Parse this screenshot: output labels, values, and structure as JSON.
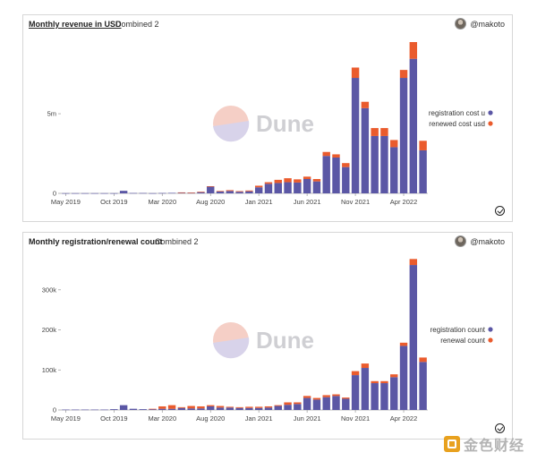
{
  "watermark": {
    "text": "金色财经"
  },
  "chart_data": [
    {
      "type": "bar",
      "stacked": true,
      "title": "Monthly revenue in USD",
      "subtitle": "Combined 2",
      "author": "@makoto",
      "brand": "Dune",
      "yticks": [
        {
          "value": 0,
          "label": "0"
        },
        {
          "value": 5000000,
          "label": "5m"
        }
      ],
      "ylim": [
        0,
        9500000
      ],
      "grid": false,
      "legend": "right",
      "xtick_labels": [
        {
          "index": 0,
          "label": "May 2019"
        },
        {
          "index": 5,
          "label": "Oct 2019"
        },
        {
          "index": 10,
          "label": "Mar 2020"
        },
        {
          "index": 15,
          "label": "Aug 2020"
        },
        {
          "index": 20,
          "label": "Jan 2021"
        },
        {
          "index": 25,
          "label": "Jun 2021"
        },
        {
          "index": 30,
          "label": "Nov 2021"
        },
        {
          "index": 35,
          "label": "Apr 2022"
        }
      ],
      "series": [
        {
          "name": "registration cost u",
          "color": "#5b57a5",
          "values": [
            10000,
            10000,
            10000,
            10000,
            10000,
            10000,
            160000,
            20000,
            20000,
            10000,
            20000,
            30000,
            40000,
            30000,
            80000,
            420000,
            120000,
            150000,
            100000,
            130000,
            380000,
            600000,
            650000,
            700000,
            680000,
            900000,
            750000,
            2350000,
            2250000,
            1650000,
            7250000,
            5350000,
            3600000,
            3600000,
            2900000,
            7250000,
            8450000,
            2700000
          ]
        },
        {
          "name": "renewed cost usd",
          "color": "#ea5b2d",
          "values": [
            0,
            0,
            0,
            0,
            0,
            0,
            0,
            0,
            0,
            0,
            0,
            0,
            20000,
            20000,
            20000,
            30000,
            30000,
            50000,
            40000,
            50000,
            100000,
            100000,
            200000,
            250000,
            200000,
            150000,
            150000,
            250000,
            200000,
            250000,
            650000,
            400000,
            500000,
            500000,
            450000,
            500000,
            1050000,
            600000
          ]
        }
      ]
    },
    {
      "type": "bar",
      "stacked": true,
      "title": "Monthly registration/renewal count",
      "subtitle": "Combined 2",
      "author": "@makoto",
      "brand": "Dune",
      "yticks": [
        {
          "value": 0,
          "label": "0"
        },
        {
          "value": 100000,
          "label": "100k"
        },
        {
          "value": 200000,
          "label": "200k"
        },
        {
          "value": 300000,
          "label": "300k"
        }
      ],
      "ylim": [
        0,
        380000
      ],
      "grid": false,
      "legend": "right",
      "xtick_labels": [
        {
          "index": 0,
          "label": "May 2019"
        },
        {
          "index": 5,
          "label": "Oct 2019"
        },
        {
          "index": 10,
          "label": "Mar 2020"
        },
        {
          "index": 15,
          "label": "Aug 2020"
        },
        {
          "index": 20,
          "label": "Jan 2021"
        },
        {
          "index": 25,
          "label": "Jun 2021"
        },
        {
          "index": 30,
          "label": "Nov 2021"
        },
        {
          "index": 35,
          "label": "Apr 2022"
        }
      ],
      "series": [
        {
          "name": "registration count",
          "color": "#5b57a5",
          "values": [
            1000,
            1000,
            1000,
            1000,
            1000,
            2000,
            12000,
            3000,
            2000,
            2000,
            3000,
            3000,
            5000,
            4000,
            4000,
            9000,
            6000,
            6000,
            5000,
            5000,
            5000,
            6000,
            10000,
            13000,
            15000,
            30000,
            26000,
            32000,
            35000,
            28000,
            87000,
            105000,
            67000,
            67000,
            82000,
            160000,
            362000,
            120000
          ]
        },
        {
          "name": "renewal count",
          "color": "#ea5b2d",
          "values": [
            0,
            0,
            0,
            0,
            0,
            0,
            0,
            0,
            0,
            1000,
            6000,
            9000,
            2000,
            6000,
            5000,
            3000,
            4000,
            2000,
            2000,
            3000,
            3000,
            3000,
            2000,
            6000,
            4000,
            5000,
            4000,
            5000,
            4000,
            3000,
            10000,
            11000,
            5000,
            5000,
            7000,
            8000,
            15000,
            11000
          ]
        }
      ]
    }
  ]
}
